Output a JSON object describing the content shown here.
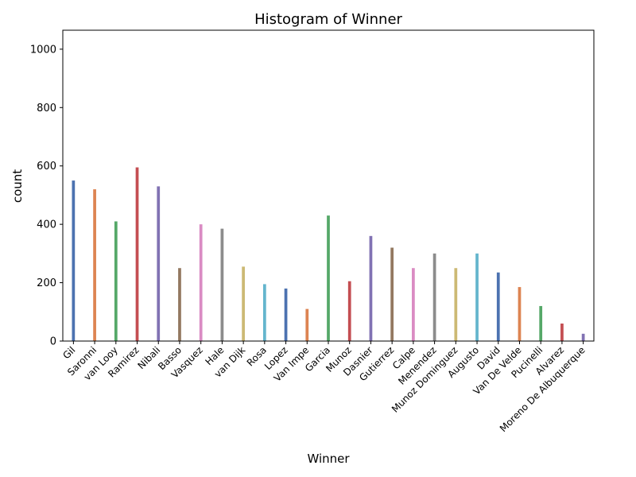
{
  "chart_data": {
    "type": "bar",
    "title": "Histogram of Winner",
    "xlabel": "Winner",
    "ylabel": "count",
    "ylim": [
      0,
      1065
    ],
    "yticks": [
      0,
      200,
      400,
      600,
      800,
      1000
    ],
    "grid": false,
    "legend": "none",
    "palette": [
      "#4c72b0",
      "#dd8452",
      "#55a868",
      "#c44e52",
      "#8172b3",
      "#937860",
      "#da8bc3",
      "#8c8c8c",
      "#ccb974",
      "#64b5cd"
    ],
    "categories": [
      "Gil",
      "Saronni",
      "van Looy",
      "Ramirez",
      "Nibali",
      "Basso",
      "Vasquez",
      "Hale",
      "van Dijk",
      "Rosa",
      "Lopez",
      "Van Impe",
      "Garcia",
      "Munoz",
      "Dasnier",
      "Gutierrez",
      "Calpe",
      "Menendez",
      "Munoz Dominguez",
      "Augusto",
      "David",
      "Van De Velde",
      "Pucinelli",
      "Alvarez",
      "Moreno De Albuquerque"
    ],
    "values": [
      550,
      520,
      410,
      595,
      530,
      250,
      400,
      385,
      255,
      195,
      180,
      110,
      430,
      205,
      360,
      320,
      250,
      300,
      250,
      300,
      235,
      185,
      120,
      60,
      25
    ]
  }
}
